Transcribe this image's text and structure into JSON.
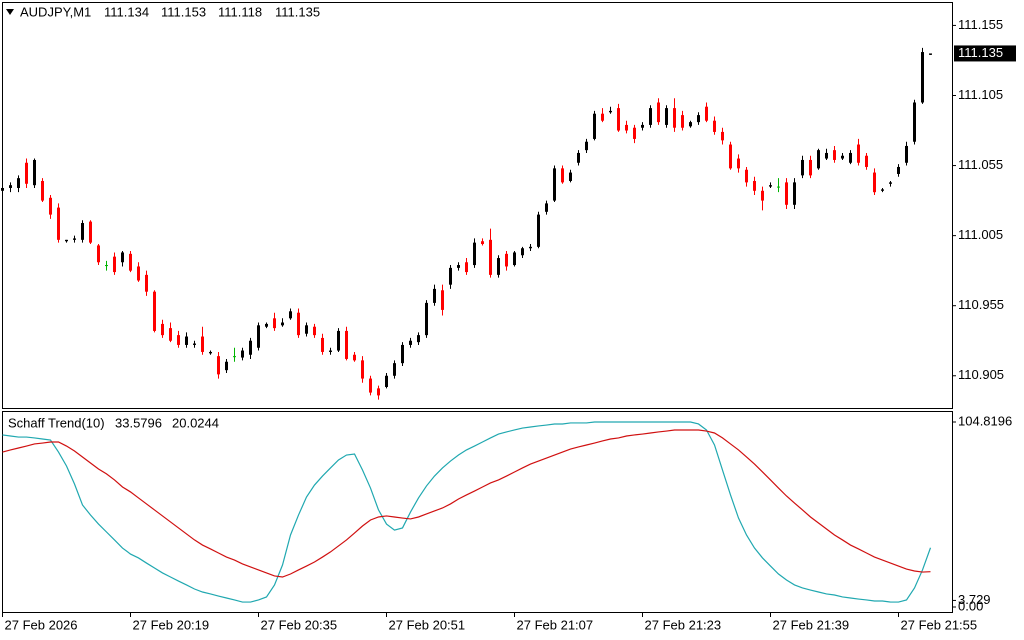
{
  "chart_data": [
    {
      "type": "candlestick",
      "title": "AUDJPY,M1",
      "quote": [
        111.134,
        111.153,
        111.118,
        111.135
      ],
      "last_price": 111.135,
      "up_color": "#000000",
      "down_color": "#ff0000",
      "doji_color": "#00b400",
      "ylim": [
        110.882,
        111.171
      ],
      "yticks": [
        111.155,
        111.105,
        111.055,
        111.005,
        110.955,
        110.905
      ],
      "categories": [
        "27 Feb 2026",
        null,
        null,
        null,
        null,
        null,
        null,
        null,
        null,
        null,
        null,
        null,
        null,
        null,
        null,
        null,
        "27 Feb 20:19",
        null,
        null,
        null,
        null,
        null,
        null,
        null,
        null,
        null,
        null,
        null,
        null,
        null,
        null,
        null,
        "27 Feb 20:35",
        null,
        null,
        null,
        null,
        null,
        null,
        null,
        null,
        null,
        null,
        null,
        null,
        null,
        null,
        null,
        "27 Feb 20:51",
        null,
        null,
        null,
        null,
        null,
        null,
        null,
        null,
        null,
        null,
        null,
        null,
        null,
        null,
        null,
        "27 Feb 21:07",
        null,
        null,
        null,
        null,
        null,
        null,
        null,
        null,
        null,
        null,
        null,
        null,
        null,
        null,
        null,
        "27 Feb 21:23",
        null,
        null,
        null,
        null,
        null,
        null,
        null,
        null,
        null,
        null,
        null,
        null,
        null,
        null,
        null,
        "27 Feb 21:39",
        null,
        null,
        null,
        null,
        null,
        null,
        null,
        null,
        null,
        null,
        null,
        null,
        null,
        null,
        null,
        "27 Feb 21:55",
        null,
        null,
        null,
        null
      ],
      "open": [
        111.037,
        111.039,
        111.039,
        111.057,
        111.041,
        111.044,
        111.032,
        111.025,
        111.001,
        111.002,
        111.002,
        111.015,
        110.998,
        110.984,
        110.99,
        110.986,
        110.992,
        110.983,
        110.977,
        110.965,
        110.942,
        110.939,
        110.934,
        110.927,
        110.927,
        110.933,
        110.921,
        110.919,
        110.909,
        110.919,
        110.918,
        110.92,
        110.925,
        110.94,
        110.946,
        110.941,
        110.946,
        110.95,
        110.935,
        110.94,
        110.932,
        110.922,
        110.923,
        110.937,
        110.92,
        110.916,
        110.903,
        110.896,
        110.897,
        110.905,
        110.914,
        110.927,
        110.929,
        110.934,
        110.957,
        110.966,
        110.97,
        110.982,
        110.986,
        110.984,
        111.001,
        111.002,
        110.977,
        110.992,
        110.984,
        110.991,
        110.996,
        110.997,
        111.022,
        111.03,
        111.053,
        111.044,
        111.057,
        111.066,
        111.074,
        111.092,
        111.093,
        111.096,
        111.084,
        111.082,
        111.082,
        111.084,
        111.1,
        111.084,
        111.096,
        111.091,
        111.083,
        111.086,
        111.097,
        111.087,
        111.079,
        111.07,
        111.06,
        111.052,
        111.044,
        111.037,
        111.04,
        111.04,
        111.043,
        111.027,
        111.048,
        111.059,
        111.053,
        111.06,
        111.066,
        111.06,
        111.057,
        111.07,
        111.062,
        111.05,
        111.037,
        111.042,
        111.049,
        111.057,
        111.072,
        111.1,
        111.134
      ],
      "high": [
        111.04,
        111.043,
        111.048,
        111.06,
        111.06,
        111.046,
        111.034,
        111.028,
        111.002,
        111.005,
        111.016,
        111.016,
        110.999,
        110.987,
        110.993,
        110.994,
        110.994,
        110.986,
        110.98,
        110.966,
        110.945,
        110.943,
        110.937,
        110.936,
        110.93,
        110.94,
        110.923,
        110.922,
        110.917,
        110.925,
        110.925,
        110.932,
        110.943,
        110.943,
        110.95,
        110.946,
        110.953,
        110.953,
        110.943,
        110.942,
        110.935,
        110.925,
        110.939,
        110.94,
        110.922,
        110.919,
        110.905,
        110.898,
        110.907,
        110.916,
        110.929,
        110.932,
        110.936,
        110.959,
        110.97,
        110.97,
        110.984,
        110.986,
        110.989,
        111.003,
        111.003,
        111.01,
        110.991,
        110.994,
        110.994,
        110.997,
        110.999,
        111.022,
        111.03,
        111.055,
        111.055,
        111.052,
        111.066,
        111.074,
        111.094,
        111.096,
        111.097,
        111.099,
        111.087,
        111.084,
        111.086,
        111.098,
        111.103,
        111.098,
        111.103,
        111.094,
        111.087,
        111.093,
        111.1,
        111.09,
        111.082,
        111.072,
        111.063,
        111.054,
        111.047,
        111.04,
        111.043,
        111.046,
        111.046,
        111.046,
        111.062,
        111.062,
        111.067,
        111.067,
        111.069,
        111.064,
        111.066,
        111.074,
        111.064,
        111.053,
        111.039,
        111.044,
        111.056,
        111.072,
        111.102,
        111.139,
        111.135
      ],
      "low": [
        111.034,
        111.036,
        111.036,
        111.039,
        111.039,
        111.029,
        111.017,
        111.0,
        111.0,
        111.0,
        111.0,
        110.999,
        110.984,
        110.98,
        110.977,
        110.983,
        110.979,
        110.972,
        110.962,
        110.936,
        110.932,
        110.929,
        110.925,
        110.925,
        110.925,
        110.92,
        110.92,
        110.903,
        110.907,
        110.915,
        110.916,
        110.917,
        110.923,
        110.939,
        110.937,
        110.94,
        110.945,
        110.932,
        110.933,
        110.932,
        110.92,
        110.92,
        110.922,
        110.916,
        110.915,
        110.9,
        110.891,
        110.888,
        110.896,
        110.903,
        110.912,
        110.925,
        110.927,
        110.932,
        110.955,
        110.948,
        110.967,
        110.98,
        110.977,
        110.982,
        110.998,
        110.975,
        110.975,
        110.98,
        110.983,
        110.989,
        110.994,
        110.996,
        111.02,
        111.029,
        111.042,
        111.043,
        111.055,
        111.064,
        111.073,
        111.086,
        111.092,
        111.079,
        111.078,
        111.071,
        111.08,
        111.082,
        111.084,
        111.082,
        111.079,
        111.08,
        111.082,
        111.084,
        111.086,
        111.077,
        111.07,
        111.052,
        111.05,
        111.04,
        111.034,
        111.023,
        111.039,
        111.036,
        111.024,
        111.024,
        111.046,
        111.046,
        111.052,
        111.059,
        111.057,
        111.059,
        111.056,
        111.055,
        111.052,
        111.034,
        111.036,
        111.04,
        111.047,
        111.055,
        111.07,
        111.099,
        111.134
      ],
      "close": [
        111.039,
        111.041,
        111.046,
        111.042,
        111.059,
        111.03,
        111.02,
        111.002,
        111.002,
        111.003,
        111.014,
        111.0,
        110.986,
        110.984,
        110.979,
        110.993,
        110.98,
        110.973,
        110.965,
        110.937,
        110.934,
        110.93,
        110.927,
        110.933,
        110.928,
        110.922,
        110.922,
        110.906,
        110.915,
        110.919,
        110.923,
        110.93,
        110.941,
        110.942,
        110.939,
        110.943,
        110.951,
        110.934,
        110.941,
        110.934,
        110.922,
        110.923,
        110.937,
        110.917,
        110.916,
        110.903,
        110.893,
        110.891,
        110.905,
        110.914,
        110.927,
        110.93,
        110.934,
        110.957,
        110.967,
        110.952,
        110.982,
        110.984,
        110.979,
        111.0,
        110.999,
        110.977,
        110.989,
        110.983,
        110.993,
        110.996,
        110.997,
        111.02,
        111.028,
        111.053,
        111.043,
        111.05,
        111.064,
        111.072,
        111.092,
        111.087,
        111.094,
        111.08,
        111.08,
        111.074,
        111.084,
        111.096,
        111.086,
        111.096,
        111.082,
        111.082,
        111.086,
        111.091,
        111.087,
        111.079,
        111.073,
        111.053,
        111.053,
        111.043,
        111.037,
        111.03,
        111.041,
        111.04,
        111.027,
        111.043,
        111.059,
        111.048,
        111.066,
        111.064,
        111.059,
        111.062,
        111.064,
        111.057,
        111.054,
        111.036,
        111.038,
        111.043,
        111.054,
        111.069,
        111.1,
        111.136,
        111.135
      ]
    },
    {
      "type": "line",
      "title": "Schaff Trend(10)",
      "ylim": [
        -2.83,
        109.92
      ],
      "yticks": [
        104.8196,
        3.729,
        {
          "value": 0,
          "label": "0.00"
        }
      ],
      "series": [
        {
          "color": "#20a8b0",
          "values": [
            97.5,
            96.9,
            96.3,
            96.3,
            95.8,
            95.2,
            94.6,
            87.8,
            79.9,
            69.7,
            57.8,
            52.1,
            47.0,
            42.5,
            38.0,
            33.4,
            30.0,
            27.8,
            24.9,
            22.1,
            19.3,
            17.0,
            14.7,
            12.5,
            10.2,
            8.5,
            7.4,
            6.2,
            5.1,
            4.0,
            2.8,
            2.8,
            4.0,
            5.7,
            12.5,
            23.8,
            40.8,
            52.1,
            62.3,
            69.1,
            74.2,
            78.8,
            83.3,
            86.1,
            86.7,
            77.6,
            67.4,
            55.0,
            47.0,
            43.6,
            44.8,
            53.8,
            61.8,
            68.6,
            74.2,
            78.8,
            82.7,
            86.1,
            89.0,
            91.2,
            93.5,
            95.8,
            98.0,
            99.2,
            100.3,
            101.4,
            102.0,
            102.6,
            103.1,
            103.7,
            103.7,
            104.3,
            104.3,
            104.3,
            104.8,
            104.8,
            104.8,
            104.8,
            104.8,
            104.8,
            104.8,
            104.8,
            104.8,
            104.8,
            104.8,
            104.8,
            104.8,
            103.7,
            100.3,
            91.8,
            77.6,
            63.5,
            50.4,
            40.8,
            33.4,
            27.8,
            23.2,
            18.7,
            15.3,
            12.5,
            10.8,
            9.6,
            8.5,
            7.4,
            6.8,
            5.7,
            5.1,
            4.5,
            4.0,
            3.4,
            3.4,
            2.8,
            2.8,
            4.0,
            10.8,
            21.0,
            33.5796
          ]
        },
        {
          "color": "#d01010",
          "values": [
            87.8,
            89.0,
            90.1,
            91.2,
            92.4,
            92.9,
            93.5,
            93.5,
            91.2,
            88.4,
            85.0,
            81.6,
            78.2,
            75.4,
            72.0,
            68.0,
            65.2,
            61.8,
            58.4,
            55.0,
            51.6,
            48.2,
            44.8,
            41.4,
            38.0,
            35.1,
            32.9,
            30.6,
            28.3,
            26.6,
            24.4,
            22.7,
            21.0,
            19.3,
            17.6,
            17.0,
            18.7,
            21.0,
            23.2,
            25.5,
            28.3,
            31.2,
            34.6,
            38.0,
            41.9,
            45.9,
            49.3,
            51.0,
            51.6,
            51.0,
            50.4,
            49.9,
            51.0,
            52.7,
            54.4,
            56.1,
            58.4,
            61.2,
            63.5,
            65.7,
            68.0,
            70.3,
            72.0,
            74.2,
            76.5,
            78.8,
            81.0,
            82.7,
            84.4,
            86.1,
            87.8,
            89.5,
            90.7,
            91.8,
            92.9,
            94.1,
            95.2,
            95.8,
            96.9,
            97.5,
            98.0,
            98.6,
            99.2,
            99.7,
            100.3,
            100.3,
            100.3,
            100.3,
            99.7,
            98.6,
            95.8,
            92.4,
            89.0,
            85.0,
            81.0,
            76.5,
            72.0,
            67.4,
            62.9,
            58.9,
            55.0,
            51.0,
            47.6,
            44.2,
            40.8,
            38.0,
            35.1,
            32.9,
            30.6,
            28.3,
            26.6,
            24.9,
            23.2,
            21.5,
            20.4,
            19.8,
            20.0244
          ]
        }
      ]
    }
  ]
}
